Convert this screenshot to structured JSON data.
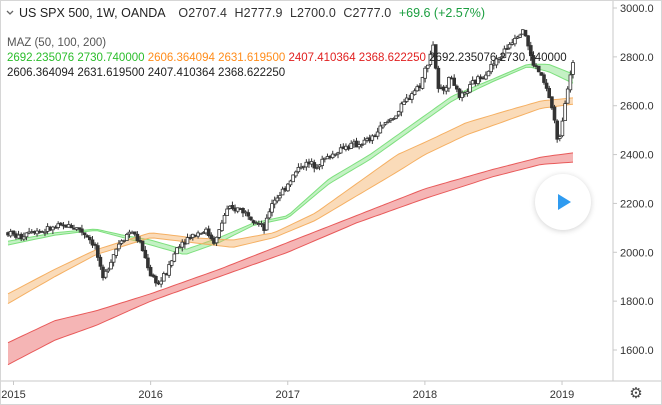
{
  "legend": {
    "symbol": "US SPX 500, 1W, OANDA",
    "open": "O2707.4",
    "high": "H2777.9",
    "low": "L2700.0",
    "close": "C2777.0",
    "change": "+69.6 (+2.57%)",
    "indicator_name": "MAZ (50, 100, 200)",
    "row1": {
      "green_a": "2692.235076",
      "green_b": "2730.740000",
      "orange_a": "2606.364094",
      "orange_b": "2631.619500",
      "red_a": "2407.410364",
      "red_b": "2368.622250",
      "black_a": "2692.235076",
      "black_b": "2730.740000"
    },
    "row2": "2606.364094 2631.619500 2407.410364 2368.622250"
  },
  "colors": {
    "up": "#26a69a",
    "down": "#ef5350",
    "candle": "#333333",
    "ma50": "#7de07d",
    "ma100": "#f5b063",
    "ma200": "#e85a5a",
    "axis": "#c8c8c8",
    "text": "#333333"
  },
  "chart_data": {
    "type": "candlestick",
    "interval": "1W",
    "ylim": [
      1500,
      3000
    ],
    "y_ticks": [
      1600,
      1800,
      2000,
      2200,
      2400,
      2600,
      2800,
      3000
    ],
    "x_ticks": [
      {
        "label": "2015",
        "t": 2015.0
      },
      {
        "label": "2016",
        "t": 2016.0
      },
      {
        "label": "2017",
        "t": 2017.0
      },
      {
        "label": "2018",
        "t": 2018.0
      },
      {
        "label": "2019",
        "t": 2019.0
      }
    ],
    "xlim": [
      2014.96,
      2019.1
    ],
    "price_anchors": [
      [
        2014.96,
        2080
      ],
      [
        2015.05,
        2060
      ],
      [
        2015.12,
        2095
      ],
      [
        2015.2,
        2085
      ],
      [
        2015.3,
        2100
      ],
      [
        2015.4,
        2110
      ],
      [
        2015.48,
        2095
      ],
      [
        2015.55,
        2060
      ],
      [
        2015.6,
        2020
      ],
      [
        2015.65,
        1880
      ],
      [
        2015.7,
        1960
      ],
      [
        2015.78,
        2050
      ],
      [
        2015.86,
        2090
      ],
      [
        2015.93,
        2030
      ],
      [
        2016.0,
        1910
      ],
      [
        2016.06,
        1870
      ],
      [
        2016.12,
        1920
      ],
      [
        2016.2,
        2030
      ],
      [
        2016.3,
        2070
      ],
      [
        2016.4,
        2090
      ],
      [
        2016.47,
        2040
      ],
      [
        2016.55,
        2170
      ],
      [
        2016.65,
        2180
      ],
      [
        2016.75,
        2140
      ],
      [
        2016.83,
        2090
      ],
      [
        2016.88,
        2200
      ],
      [
        2016.96,
        2250
      ],
      [
        2017.1,
        2360
      ],
      [
        2017.2,
        2360
      ],
      [
        2017.3,
        2390
      ],
      [
        2017.4,
        2430
      ],
      [
        2017.5,
        2440
      ],
      [
        2017.6,
        2460
      ],
      [
        2017.7,
        2520
      ],
      [
        2017.8,
        2570
      ],
      [
        2017.9,
        2650
      ],
      [
        2017.97,
        2690
      ],
      [
        2018.06,
        2850
      ],
      [
        2018.1,
        2650
      ],
      [
        2018.2,
        2720
      ],
      [
        2018.25,
        2620
      ],
      [
        2018.35,
        2690
      ],
      [
        2018.45,
        2740
      ],
      [
        2018.55,
        2800
      ],
      [
        2018.65,
        2880
      ],
      [
        2018.72,
        2920
      ],
      [
        2018.78,
        2780
      ],
      [
        2018.84,
        2730
      ],
      [
        2018.9,
        2650
      ],
      [
        2018.94,
        2560
      ],
      [
        2018.97,
        2430
      ],
      [
        2019.0,
        2540
      ],
      [
        2019.04,
        2680
      ],
      [
        2019.08,
        2777
      ]
    ],
    "ma_bands": [
      {
        "name": "MAZ 50",
        "anchors": [
          [
            2014.96,
            2030,
            2045
          ],
          [
            2015.3,
            2070,
            2080
          ],
          [
            2015.6,
            2090,
            2095
          ],
          [
            2015.8,
            2060,
            2070
          ],
          [
            2016.0,
            2030,
            2050
          ],
          [
            2016.25,
            1990,
            2010
          ],
          [
            2016.5,
            2040,
            2060
          ],
          [
            2016.75,
            2110,
            2120
          ],
          [
            2017.0,
            2140,
            2150
          ],
          [
            2017.3,
            2280,
            2300
          ],
          [
            2017.6,
            2380,
            2400
          ],
          [
            2017.9,
            2500,
            2520
          ],
          [
            2018.2,
            2620,
            2640
          ],
          [
            2018.5,
            2700,
            2710
          ],
          [
            2018.75,
            2760,
            2770
          ],
          [
            2018.9,
            2740,
            2770
          ],
          [
            2019.08,
            2692,
            2730
          ]
        ]
      },
      {
        "name": "MAZ 100",
        "anchors": [
          [
            2014.96,
            1790,
            1830
          ],
          [
            2015.3,
            1900,
            1930
          ],
          [
            2015.6,
            1990,
            2010
          ],
          [
            2016.0,
            2060,
            2080
          ],
          [
            2016.3,
            2040,
            2060
          ],
          [
            2016.6,
            2020,
            2050
          ],
          [
            2016.9,
            2060,
            2080
          ],
          [
            2017.2,
            2130,
            2160
          ],
          [
            2017.5,
            2230,
            2280
          ],
          [
            2017.8,
            2330,
            2400
          ],
          [
            2018.0,
            2400,
            2450
          ],
          [
            2018.3,
            2480,
            2530
          ],
          [
            2018.6,
            2540,
            2580
          ],
          [
            2018.85,
            2590,
            2620
          ],
          [
            2019.08,
            2606,
            2632
          ]
        ]
      },
      {
        "name": "MAZ 200",
        "anchors": [
          [
            2014.96,
            1540,
            1630
          ],
          [
            2015.3,
            1640,
            1720
          ],
          [
            2015.6,
            1700,
            1760
          ],
          [
            2016.0,
            1800,
            1830
          ],
          [
            2016.5,
            1900,
            1930
          ],
          [
            2017.0,
            2000,
            2040
          ],
          [
            2017.5,
            2120,
            2150
          ],
          [
            2018.0,
            2220,
            2260
          ],
          [
            2018.5,
            2310,
            2340
          ],
          [
            2018.85,
            2360,
            2390
          ],
          [
            2019.08,
            2369,
            2407
          ]
        ]
      }
    ]
  }
}
